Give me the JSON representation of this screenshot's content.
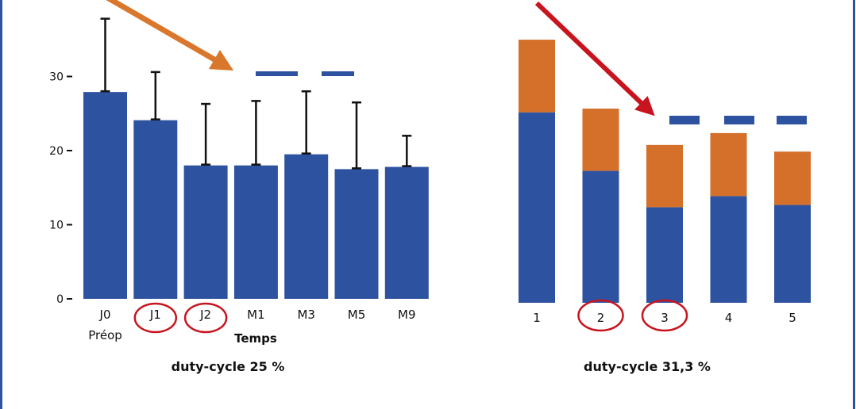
{
  "colors": {
    "blue": "#2d52a0",
    "orange": "#d4702a",
    "red": "#c8141e",
    "orange_arrow": "#d9782d"
  },
  "chart_data": [
    {
      "type": "bar",
      "title": "duty-cycle 25 %",
      "xlabel": "Temps",
      "ylabel": "",
      "categories": [
        "J0",
        "J1",
        "J2",
        "M1",
        "M3",
        "M5",
        "M9"
      ],
      "category_sublabels": {
        "J0": "Préop"
      },
      "values": [
        27.9,
        24.1,
        18.0,
        18.0,
        19.5,
        17.5,
        17.8
      ],
      "error_upper": [
        37.8,
        30.6,
        26.3,
        26.7,
        28.0,
        26.5,
        22.0
      ],
      "yticks": [
        "0",
        "10",
        "20",
        "30"
      ],
      "ylim": [
        0,
        40
      ],
      "circled": [
        "J1",
        "J2"
      ],
      "grid": false
    },
    {
      "type": "bar",
      "stacked": true,
      "title": "duty-cycle 31,3 %",
      "categories": [
        "1",
        "2",
        "3",
        "4",
        "5"
      ],
      "series": [
        {
          "name": "bottom",
          "color": "#2d52a0",
          "values": [
            25.7,
            17.8,
            12.9,
            14.4,
            13.2
          ]
        },
        {
          "name": "top",
          "color": "#d4702a",
          "values": [
            9.8,
            8.4,
            8.4,
            8.5,
            7.2
          ]
        }
      ],
      "circled": [
        "2",
        "3"
      ],
      "grid": false
    }
  ]
}
